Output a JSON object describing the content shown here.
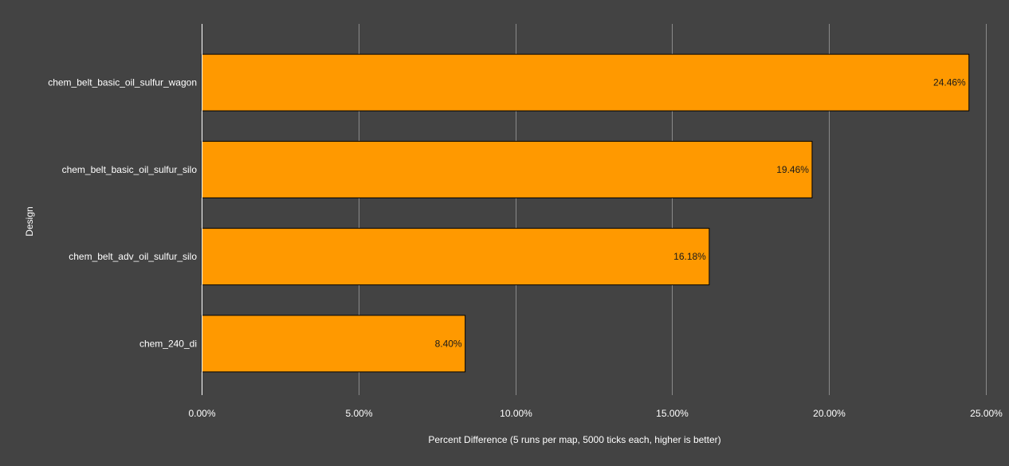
{
  "chart_data": {
    "type": "bar",
    "orientation": "horizontal",
    "title": "",
    "xlabel": "Percent Difference (5 runs per map, 5000 ticks each, higher is better)",
    "ylabel": "Design",
    "categories": [
      "chem_belt_basic_oil_sulfur_wagon",
      "chem_belt_basic_oil_sulfur_silo",
      "chem_belt_adv_oil_sulfur_silo",
      "chem_240_di"
    ],
    "values": [
      24.46,
      19.46,
      16.18,
      8.4
    ],
    "value_labels": [
      "24.46%",
      "19.46%",
      "16.18%",
      "8.40%"
    ],
    "xlim": [
      0,
      25
    ],
    "x_ticks": [
      0,
      5,
      10,
      15,
      20,
      25
    ],
    "x_tick_labels": [
      "0.00%",
      "5.00%",
      "10.00%",
      "15.00%",
      "20.00%",
      "25.00%"
    ],
    "grid": true,
    "legend": "none",
    "colors": {
      "background": "#434343",
      "bar": "#ff9900",
      "bar_stroke": "#000000",
      "grid": "#8a8a8a",
      "axis": "#ffffff",
      "text": "#ffffff",
      "value_label": "#1a1a1a"
    }
  }
}
